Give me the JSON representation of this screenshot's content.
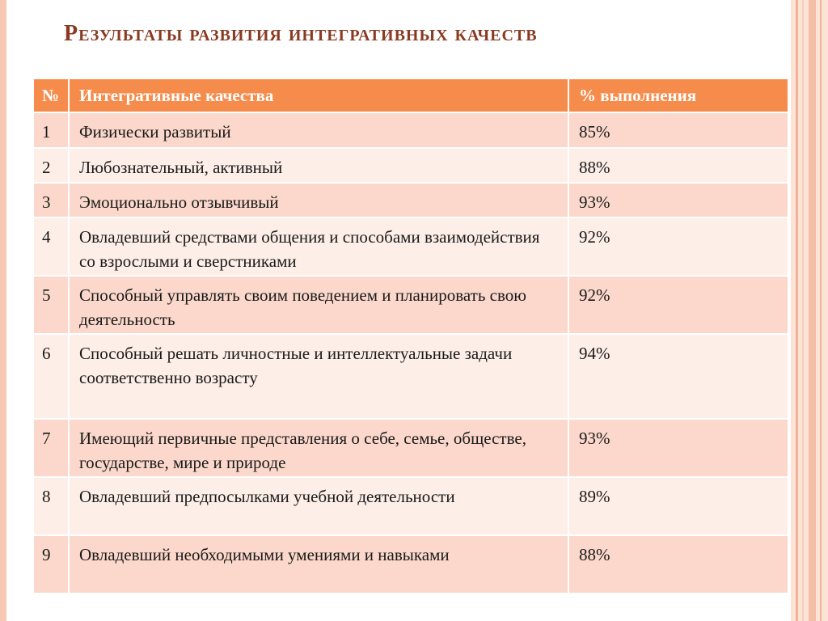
{
  "title": "Результаты развития интегративных качеств",
  "table": {
    "headers": [
      "№",
      "Интегративные качества",
      "%  выполнения"
    ],
    "rows": [
      {
        "num": "1",
        "quality": "Физически  развитый",
        "percent": "85%"
      },
      {
        "num": "2",
        "quality": "Любознательный, активный",
        "percent": "88%"
      },
      {
        "num": "3",
        "quality": "Эмоционально  отзывчивый",
        "percent": "93%"
      },
      {
        "num": "4",
        "quality": "Овладевший  средствами общения и способами взаимодействия со взрослыми и сверстниками",
        "percent": "92%"
      },
      {
        "num": "5",
        "quality": "Способный управлять своим поведением и планировать свою деятельность",
        "percent": "92%"
      },
      {
        "num": "6",
        "quality": "Способный решать личностные и интеллектуальные задачи соответственно возрасту",
        "percent": "94%"
      },
      {
        "num": "7",
        "quality": "Имеющий первичные  представления  о себе, семье, обществе, государстве, мире и природе",
        "percent": "93%"
      },
      {
        "num": "8",
        "quality": "Овладевший  предпосылками  учебной деятельности",
        "percent": "89%"
      },
      {
        "num": "9",
        "quality": "Овладевший  необходимыми  умениями и навыками",
        "percent": "88%"
      }
    ]
  },
  "colors": {
    "title": "#8a3a21",
    "header_bg": "#f68c4c",
    "row_odd": "#fbd8cb",
    "row_even": "#fdeee8"
  }
}
